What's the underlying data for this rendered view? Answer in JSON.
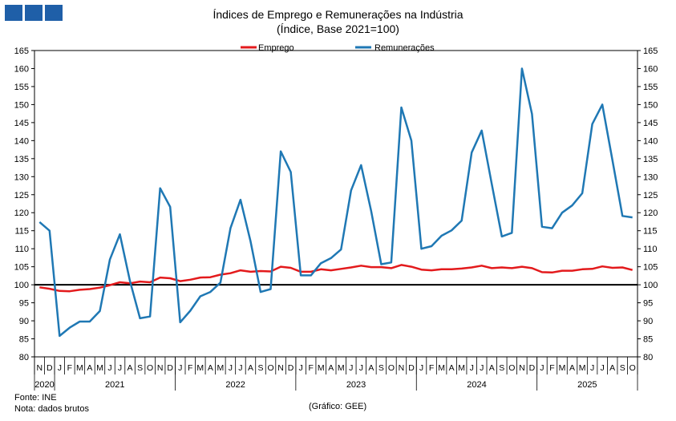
{
  "header": {
    "title": "Índices de Emprego e Remunerações na Indústria",
    "subtitle": "(Índice, Base 2021=100)"
  },
  "footer": {
    "source": "Fonte: INE",
    "note": "Nota: dados brutos",
    "credit": "(Gráfico: GEE)"
  },
  "colors": {
    "logo": "#1f5fa8",
    "emprego": "#e31a1c",
    "remuneracoes": "#1f78b4",
    "baseline": "#000000"
  },
  "chart_data": {
    "type": "line",
    "title": "Índices de Emprego e Remunerações na Indústria",
    "subtitle": "(Índice, Base 2021=100)",
    "ylim": [
      80,
      165
    ],
    "yticks": [
      80,
      85,
      90,
      95,
      100,
      105,
      110,
      115,
      120,
      125,
      130,
      135,
      140,
      145,
      150,
      155,
      160,
      165
    ],
    "grid": false,
    "legend_position": "top-center",
    "reference_line": 100,
    "month_labels": [
      "N",
      "D",
      "J",
      "F",
      "M",
      "A",
      "M",
      "J",
      "J",
      "A",
      "S",
      "O",
      "N",
      "D",
      "J",
      "F",
      "M",
      "A",
      "M",
      "J",
      "J",
      "A",
      "S",
      "O",
      "N",
      "D",
      "J",
      "F",
      "M",
      "A",
      "M",
      "J",
      "J",
      "A",
      "S",
      "O",
      "N",
      "D",
      "J",
      "F",
      "M",
      "A",
      "M",
      "J",
      "J",
      "A",
      "S",
      "O",
      "N",
      "D",
      "J",
      "F",
      "M",
      "A",
      "M",
      "J",
      "J",
      "A",
      "S",
      "O"
    ],
    "years": [
      {
        "label": "2020",
        "start": 0,
        "count": 2
      },
      {
        "label": "2021",
        "start": 2,
        "count": 12
      },
      {
        "label": "2022",
        "start": 14,
        "count": 12
      },
      {
        "label": "2023",
        "start": 26,
        "count": 12
      },
      {
        "label": "2024",
        "start": 38,
        "count": 12
      },
      {
        "label": "2025",
        "start": 50,
        "count": 10
      }
    ],
    "series": [
      {
        "name": "Emprego",
        "color": "#e31a1c",
        "values": [
          99.3,
          98.9,
          98.3,
          98.2,
          98.6,
          98.8,
          99.2,
          99.9,
          100.7,
          100.4,
          100.9,
          100.7,
          102.0,
          101.8,
          101.0,
          101.4,
          102.0,
          102.1,
          102.8,
          103.2,
          104.0,
          103.6,
          103.8,
          103.7,
          105.0,
          104.7,
          103.6,
          103.6,
          104.3,
          104.0,
          104.4,
          104.8,
          105.3,
          104.9,
          104.9,
          104.6,
          105.5,
          105.0,
          104.2,
          104.0,
          104.3,
          104.3,
          104.5,
          104.8,
          105.3,
          104.6,
          104.8,
          104.6,
          105.0,
          104.6,
          103.5,
          103.4,
          103.9,
          103.9,
          104.3,
          104.4,
          105.1,
          104.7,
          104.8,
          104.1
        ]
      },
      {
        "name": "Remunerações",
        "color": "#1f78b4",
        "values": [
          117.4,
          115.0,
          85.8,
          88.1,
          89.8,
          89.8,
          92.7,
          107.0,
          114.0,
          101.0,
          90.7,
          91.2,
          126.8,
          121.6,
          89.6,
          92.8,
          96.8,
          98.0,
          100.6,
          115.7,
          123.6,
          112.0,
          98.0,
          98.8,
          137.0,
          131.3,
          102.6,
          102.6,
          106.0,
          107.4,
          109.8,
          126.2,
          133.2,
          120.4,
          105.7,
          106.2,
          149.2,
          140.0,
          110.0,
          110.7,
          113.6,
          115.1,
          117.8,
          136.7,
          142.8,
          127.9,
          113.4,
          114.4,
          160.0,
          147.4,
          116.1,
          115.7,
          120.0,
          122.0,
          125.4,
          144.6,
          150.0,
          134.6,
          119.1,
          118.7
        ]
      }
    ]
  }
}
